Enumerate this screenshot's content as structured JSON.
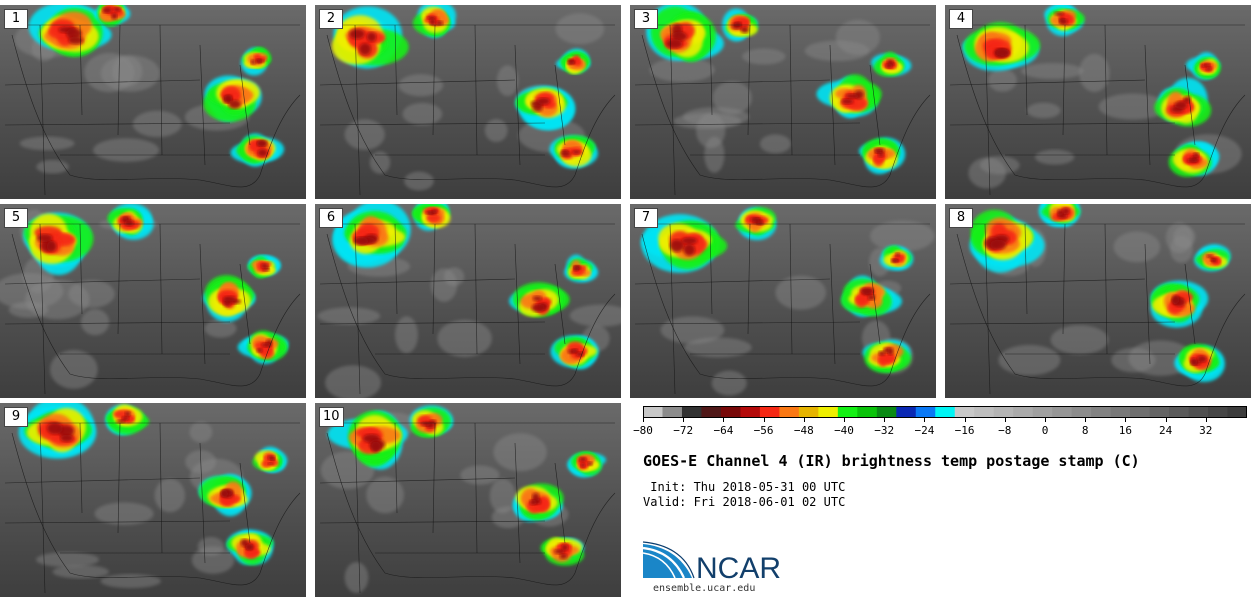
{
  "panels": [
    {
      "label": "1"
    },
    {
      "label": "2"
    },
    {
      "label": "3"
    },
    {
      "label": "4"
    },
    {
      "label": "5"
    },
    {
      "label": "6"
    },
    {
      "label": "7"
    },
    {
      "label": "8"
    },
    {
      "label": "9"
    },
    {
      "label": "10"
    }
  ],
  "colorbar": {
    "colors": [
      "#c8c8c8",
      "#8c8c8c",
      "#323232",
      "#501818",
      "#780808",
      "#b40a0a",
      "#f52814",
      "#fa7814",
      "#e6b400",
      "#eeee00",
      "#14f014",
      "#0ac30a",
      "#0a8a14",
      "#0a28b4",
      "#0a78f5",
      "#00f5f5",
      "#c8c8c8",
      "#bebebe",
      "#b4b4b4",
      "#aaaaaa",
      "#a0a0a0",
      "#969696",
      "#8c8c8c",
      "#828282",
      "#787878",
      "#6e6e6e",
      "#646464",
      "#5a5a5a",
      "#505050",
      "#464646",
      "#3c3c3c"
    ],
    "ticks": [
      "−80",
      "−72",
      "−64",
      "−56",
      "−48",
      "−40",
      "−32",
      "−24",
      "−16",
      "−8",
      "0",
      "8",
      "16",
      "24",
      "32"
    ]
  },
  "title": "GOES-E Channel 4 (IR) brightness temp postage stamp (C)",
  "init_line": " Init: Thu 2018-05-31 00 UTC",
  "valid_line": "Valid: Fri 2018-06-01 02 UTC",
  "logo_text": "NCAR",
  "website": "ensemble.ucar.edu"
}
